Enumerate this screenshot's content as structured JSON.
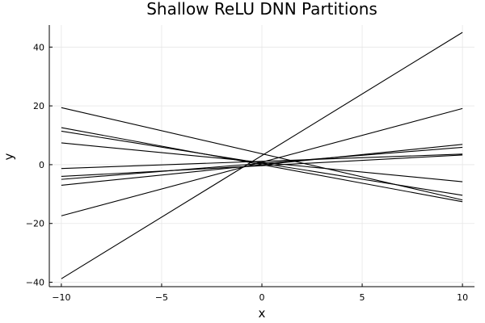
{
  "chart_data": {
    "type": "line",
    "title": "Shallow ReLU DNN Partitions",
    "xlabel": "x",
    "ylabel": "y",
    "xlim": [
      -10.6,
      10.6
    ],
    "ylim": [
      -41.5,
      47.5
    ],
    "xticks": [
      -10,
      -5,
      0,
      5,
      10
    ],
    "yticks": [
      -40,
      -20,
      0,
      20,
      40
    ],
    "grid": true,
    "legend": "none",
    "line_color": "#000000",
    "series": [
      {
        "x": [
          -10,
          10
        ],
        "y": [
          -38.8,
          45.0
        ]
      },
      {
        "x": [
          -10,
          10
        ],
        "y": [
          -17.4,
          19.1
        ]
      },
      {
        "x": [
          -10,
          10
        ],
        "y": [
          19.4,
          -12.0
        ]
      },
      {
        "x": [
          -10,
          10
        ],
        "y": [
          12.6,
          -12.6
        ]
      },
      {
        "x": [
          -10,
          10
        ],
        "y": [
          11.4,
          -10.4
        ]
      },
      {
        "x": [
          -10,
          10
        ],
        "y": [
          7.4,
          -5.8
        ]
      },
      {
        "x": [
          -10,
          10
        ],
        "y": [
          -7.0,
          6.9
        ]
      },
      {
        "x": [
          -10,
          10
        ],
        "y": [
          -5.0,
          5.9
        ]
      },
      {
        "x": [
          -10,
          10
        ],
        "y": [
          -4.0,
          3.3
        ]
      },
      {
        "x": [
          -10,
          10
        ],
        "y": [
          -1.3,
          3.6
        ]
      }
    ]
  }
}
